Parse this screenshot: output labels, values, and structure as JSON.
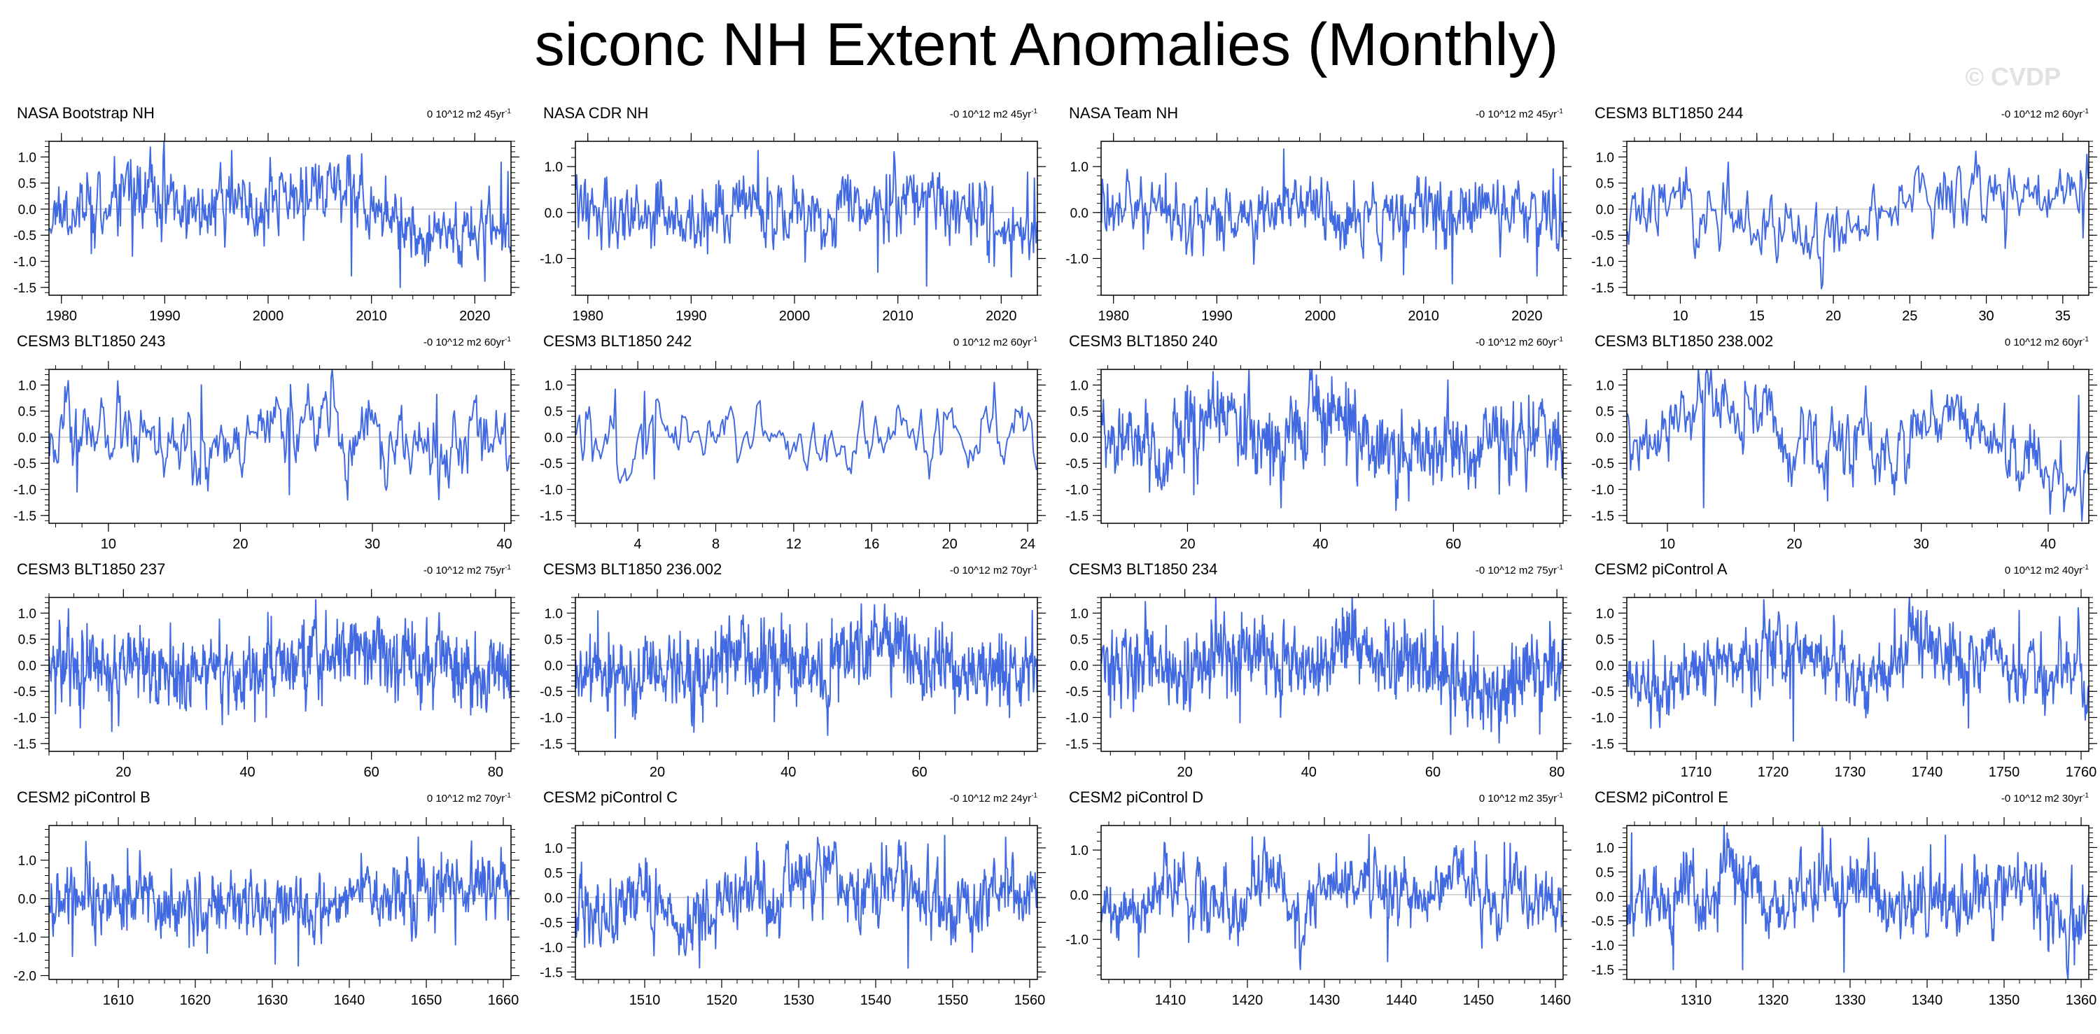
{
  "title": "siconc NH Extent Anomalies (Monthly)",
  "watermark": "© CVDP",
  "colors": {
    "line": "#4169e1",
    "zero_line": "#aaaaaa",
    "axis": "#000000"
  },
  "chart_data": [
    {
      "type": "line",
      "title": "NASA Bootstrap NH",
      "trend": "0 10^12 m2 45yr",
      "trend_sup": "-1",
      "xlim": [
        1978.8,
        2023.5
      ],
      "xticks": [
        1980,
        1990,
        2000,
        2010,
        2020
      ],
      "ylim": [
        -1.65,
        1.3
      ],
      "yticks": [
        -1.5,
        -1.0,
        -0.5,
        0.0,
        0.5,
        1.0
      ],
      "ylabels": [
        "-1.5",
        "-1.0",
        "-0.5",
        "0.0",
        "0.5",
        "1.0"
      ],
      "series": [
        {
          "name": "siconc NH extent anomaly",
          "seed": 11,
          "amp": 0.3,
          "sm": 0.35,
          "lf": 0.12,
          "n": 540,
          "spikes": [
            [
              0.395,
              1.12
            ],
            [
              0.655,
              -1.28
            ],
            [
              0.76,
              -1.5
            ],
            [
              0.945,
              -1.38
            ],
            [
              0.98,
              0.9
            ],
            [
              0.995,
              0.72
            ],
            [
              0.09,
              -0.85
            ],
            [
              0.18,
              -0.9
            ]
          ]
        }
      ]
    },
    {
      "type": "line",
      "title": "NASA CDR NH",
      "trend": "-0 10^12 m2 45yr",
      "trend_sup": "-1",
      "xlim": [
        1978.8,
        2023.5
      ],
      "xticks": [
        1980,
        1990,
        2000,
        2010,
        2020
      ],
      "ylim": [
        -1.8,
        1.55
      ],
      "yticks": [
        -1.0,
        0.0,
        1.0
      ],
      "ylabels": [
        "-1.0",
        "0.0",
        "1.0"
      ],
      "series": [
        {
          "name": "siconc NH extent anomaly",
          "seed": 12,
          "amp": 0.33,
          "sm": 0.35,
          "lf": 0.12,
          "n": 540,
          "spikes": [
            [
              0.395,
              1.35
            ],
            [
              0.655,
              -1.3
            ],
            [
              0.76,
              -1.6
            ],
            [
              0.945,
              -1.4
            ],
            [
              0.98,
              0.88
            ],
            [
              0.995,
              0.75
            ],
            [
              0.09,
              -0.78
            ]
          ]
        }
      ]
    },
    {
      "type": "line",
      "title": "NASA Team NH",
      "trend": "-0 10^12 m2 45yr",
      "trend_sup": "-1",
      "xlim": [
        1978.8,
        2023.5
      ],
      "xticks": [
        1980,
        1990,
        2000,
        2010,
        2020
      ],
      "ylim": [
        -1.8,
        1.55
      ],
      "yticks": [
        -1.0,
        0.0,
        1.0
      ],
      "ylabels": [
        "-1.0",
        "0.0",
        "1.0"
      ],
      "series": [
        {
          "name": "siconc NH extent anomaly",
          "seed": 13,
          "amp": 0.33,
          "sm": 0.35,
          "lf": 0.12,
          "n": 540,
          "spikes": [
            [
              0.395,
              1.38
            ],
            [
              0.655,
              -1.35
            ],
            [
              0.76,
              -1.55
            ],
            [
              0.945,
              -1.38
            ],
            [
              0.98,
              0.95
            ],
            [
              0.995,
              0.78
            ],
            [
              0.09,
              -0.8
            ]
          ]
        }
      ]
    },
    {
      "type": "line",
      "title": "CESM3 BLT1850 244",
      "trend": "-0 10^12 m2 60yr",
      "trend_sup": "-1",
      "xlim": [
        6.5,
        36.7
      ],
      "xticks": [
        10,
        15,
        20,
        25,
        30,
        35
      ],
      "ylim": [
        -1.65,
        1.3
      ],
      "yticks": [
        -1.5,
        -1.0,
        -0.5,
        0.0,
        0.5,
        1.0
      ],
      "ylabels": [
        "-1.5",
        "-1.0",
        "-0.5",
        "0.0",
        "0.5",
        "1.0"
      ],
      "series": [
        {
          "name": "siconc NH extent anomaly",
          "seed": 14,
          "amp": 0.28,
          "sm": 0.5,
          "lf": 0.2,
          "n": 362,
          "spikes": [
            [
              0.22,
              0.9
            ],
            [
              0.46,
              -0.8
            ],
            [
              0.82,
              -0.75
            ],
            [
              0.99,
              -0.55
            ]
          ]
        }
      ]
    },
    {
      "type": "line",
      "title": "CESM3 BLT1850 243",
      "trend": "-0 10^12 m2 60yr",
      "trend_sup": "-1",
      "xlim": [
        5.5,
        40.5
      ],
      "xticks": [
        10,
        20,
        30,
        40
      ],
      "ylim": [
        -1.65,
        1.3
      ],
      "yticks": [
        -1.5,
        -1.0,
        -0.5,
        0.0,
        0.5,
        1.0
      ],
      "ylabels": [
        "-1.5",
        "-1.0",
        "-0.5",
        "0.0",
        "0.5",
        "1.0"
      ],
      "series": [
        {
          "name": "siconc NH extent anomaly",
          "seed": 21,
          "amp": 0.3,
          "sm": 0.55,
          "lf": 0.22,
          "n": 420,
          "spikes": [
            [
              0.33,
              1.0
            ],
            [
              0.52,
              -1.1
            ],
            [
              0.06,
              -1.05
            ],
            [
              0.84,
              0.82
            ]
          ]
        }
      ]
    },
    {
      "type": "line",
      "title": "CESM3 BLT1850 242",
      "trend": "0 10^12 m2 60yr",
      "trend_sup": "-1",
      "xlim": [
        0.8,
        24.5
      ],
      "xticks": [
        4,
        8,
        12,
        16,
        20,
        24
      ],
      "ylim": [
        -1.65,
        1.3
      ],
      "yticks": [
        -1.5,
        -1.0,
        -0.5,
        0.0,
        0.5,
        1.0
      ],
      "ylabels": [
        "-1.5",
        "-1.0",
        "-0.5",
        "0.0",
        "0.5",
        "1.0"
      ],
      "series": [
        {
          "name": "siconc NH extent anomaly",
          "seed": 22,
          "amp": 0.22,
          "sm": 0.78,
          "lf": 0.08,
          "n": 284,
          "spikes": [
            [
              0.085,
              0.92
            ],
            [
              0.15,
              0.88
            ],
            [
              0.17,
              -0.8
            ]
          ]
        }
      ]
    },
    {
      "type": "line",
      "title": "CESM3 BLT1850 240",
      "trend": "-0 10^12 m2 60yr",
      "trend_sup": "-1",
      "xlim": [
        7.0,
        76.5
      ],
      "xticks": [
        20,
        40,
        60
      ],
      "ylim": [
        -1.65,
        1.3
      ],
      "yticks": [
        -1.5,
        -1.0,
        -0.5,
        0.0,
        0.5,
        1.0
      ],
      "ylabels": [
        "-1.5",
        "-1.0",
        "-0.5",
        "0.0",
        "0.5",
        "1.0"
      ],
      "series": [
        {
          "name": "siconc NH extent anomaly",
          "seed": 23,
          "amp": 0.33,
          "sm": 0.4,
          "lf": 0.2,
          "n": 720,
          "spikes": [
            [
              0.53,
              1.05
            ],
            [
              0.2,
              -1.1
            ]
          ]
        }
      ]
    },
    {
      "type": "line",
      "title": "CESM3 BLT1850 238.002",
      "trend": "0 10^12 m2 60yr",
      "trend_sup": "-1",
      "xlim": [
        6.8,
        43.2
      ],
      "xticks": [
        10,
        20,
        30,
        40
      ],
      "ylim": [
        -1.65,
        1.3
      ],
      "yticks": [
        -1.5,
        -1.0,
        -0.5,
        0.0,
        0.5,
        1.0
      ],
      "ylabels": [
        "-1.5",
        "-1.0",
        "-0.5",
        "0.0",
        "0.5",
        "1.0"
      ],
      "series": [
        {
          "name": "siconc NH extent anomaly",
          "seed": 24,
          "amp": 0.3,
          "sm": 0.5,
          "lf": 0.25,
          "n": 436,
          "spikes": [
            [
              0.165,
              -1.35
            ],
            [
              0.435,
              -1.22
            ],
            [
              0.3,
              1.0
            ],
            [
              0.98,
              0.8
            ]
          ]
        }
      ]
    },
    {
      "type": "line",
      "title": "CESM3 BLT1850 237",
      "trend": "-0 10^12 m2 75yr",
      "trend_sup": "-1",
      "xlim": [
        8.0,
        82.5
      ],
      "xticks": [
        20,
        40,
        60,
        80
      ],
      "ylim": [
        -1.65,
        1.3
      ],
      "yticks": [
        -1.5,
        -1.0,
        -0.5,
        0.0,
        0.5,
        1.0
      ],
      "ylabels": [
        "-1.5",
        "-1.0",
        "-0.5",
        "0.0",
        "0.5",
        "1.0"
      ],
      "series": [
        {
          "name": "siconc NH extent anomaly",
          "seed": 31,
          "amp": 0.35,
          "sm": 0.3,
          "lf": 0.1,
          "n": 820,
          "spikes": [
            [
              0.6,
              1.05
            ],
            [
              0.47,
              -1.0
            ]
          ]
        }
      ]
    },
    {
      "type": "line",
      "title": "CESM3 BLT1850 236.002",
      "trend": "-0 10^12 m2 70yr",
      "trend_sup": "-1",
      "xlim": [
        7.5,
        78.0
      ],
      "xticks": [
        20,
        40,
        60
      ],
      "ylim": [
        -1.65,
        1.3
      ],
      "yticks": [
        -1.5,
        -1.0,
        -0.5,
        0.0,
        0.5,
        1.0
      ],
      "ylabels": [
        "-1.5",
        "-1.0",
        "-0.5",
        "0.0",
        "0.5",
        "1.0"
      ],
      "series": [
        {
          "name": "siconc NH extent anomaly",
          "seed": 32,
          "amp": 0.35,
          "sm": 0.3,
          "lf": 0.1,
          "n": 770,
          "spikes": [
            [
              0.99,
              1.05
            ],
            [
              0.94,
              -1.0
            ],
            [
              0.43,
              -1.08
            ]
          ]
        }
      ]
    },
    {
      "type": "line",
      "title": "CESM3 BLT1850 234",
      "trend": "-0 10^12 m2 75yr",
      "trend_sup": "-1",
      "xlim": [
        6.5,
        81.0
      ],
      "xticks": [
        20,
        40,
        60,
        80
      ],
      "ylim": [
        -1.65,
        1.3
      ],
      "yticks": [
        -1.5,
        -1.0,
        -0.5,
        0.0,
        0.5,
        1.0
      ],
      "ylabels": [
        "-1.5",
        "-1.0",
        "-0.5",
        "0.0",
        "0.5",
        "1.0"
      ],
      "series": [
        {
          "name": "siconc NH extent anomaly",
          "seed": 33,
          "amp": 0.35,
          "sm": 0.35,
          "lf": 0.15,
          "n": 820,
          "spikes": [
            [
              0.72,
              1.25
            ],
            [
              0.95,
              -1.32
            ],
            [
              0.02,
              -1.0
            ],
            [
              0.3,
              -1.1
            ]
          ]
        }
      ]
    },
    {
      "type": "line",
      "title": "CESM2 piControl A",
      "trend": "0 10^12 m2 40yr",
      "trend_sup": "-1",
      "xlim": [
        1701.0,
        1761.0
      ],
      "xticks": [
        1710,
        1720,
        1730,
        1740,
        1750,
        1760
      ],
      "ylim": [
        -1.65,
        1.3
      ],
      "yticks": [
        -1.5,
        -1.0,
        -0.5,
        0.0,
        0.5,
        1.0
      ],
      "ylabels": [
        "-1.5",
        "-1.0",
        "-0.5",
        "0.0",
        "0.5",
        "1.0"
      ],
      "series": [
        {
          "name": "siconc NH extent anomaly",
          "seed": 34,
          "amp": 0.3,
          "sm": 0.45,
          "lf": 0.2,
          "n": 720,
          "spikes": [
            [
              0.36,
              -1.45
            ],
            [
              0.58,
              1.08
            ],
            [
              0.74,
              -1.2
            ],
            [
              0.85,
              1.05
            ]
          ]
        }
      ]
    },
    {
      "type": "line",
      "title": "CESM2 piControl B",
      "trend": "0 10^12 m2 70yr",
      "trend_sup": "-1",
      "xlim": [
        1601.0,
        1661.0
      ],
      "xticks": [
        1610,
        1620,
        1630,
        1640,
        1650,
        1660
      ],
      "ylim": [
        -2.1,
        1.9
      ],
      "yticks": [
        -2.0,
        -1.0,
        0.0,
        1.0
      ],
      "ylabels": [
        "-2.0",
        "-1.0",
        "0.0",
        "1.0"
      ],
      "series": [
        {
          "name": "siconc NH extent anomaly",
          "seed": 41,
          "amp": 0.38,
          "sm": 0.45,
          "lf": 0.15,
          "n": 720,
          "spikes": [
            [
              0.05,
              -1.5
            ],
            [
              0.49,
              -1.7
            ],
            [
              0.54,
              -1.75
            ],
            [
              0.8,
              1.6
            ],
            [
              0.85,
              1.2
            ],
            [
              0.88,
              -1.2
            ],
            [
              0.17,
              1.3
            ]
          ]
        }
      ]
    },
    {
      "type": "line",
      "title": "CESM2 piControl C",
      "trend": "-0 10^12 m2 24yr",
      "trend_sup": "-1",
      "xlim": [
        1501.0,
        1561.0
      ],
      "xticks": [
        1510,
        1520,
        1530,
        1540,
        1550,
        1560
      ],
      "ylim": [
        -1.65,
        1.45
      ],
      "yticks": [
        -1.5,
        -1.0,
        -0.5,
        0.0,
        0.5,
        1.0
      ],
      "ylabels": [
        "-1.5",
        "-1.0",
        "-0.5",
        "0.0",
        "0.5",
        "1.0"
      ],
      "series": [
        {
          "name": "siconc NH extent anomaly",
          "seed": 42,
          "amp": 0.33,
          "sm": 0.45,
          "lf": 0.25,
          "n": 720,
          "spikes": [
            [
              0.8,
              1.25
            ],
            [
              0.72,
              -1.42
            ],
            [
              0.02,
              -1.0
            ]
          ]
        }
      ]
    },
    {
      "type": "line",
      "title": "CESM2 piControl D",
      "trend": "0 10^12 m2 35yr",
      "trend_sup": "-1",
      "xlim": [
        1401.0,
        1461.0
      ],
      "xticks": [
        1410,
        1420,
        1430,
        1440,
        1450,
        1460
      ],
      "ylim": [
        -1.9,
        1.55
      ],
      "yticks": [
        -1.0,
        0.0,
        1.0
      ],
      "ylabels": [
        "-1.0",
        "0.0",
        "1.0"
      ],
      "series": [
        {
          "name": "siconc NH extent anomaly",
          "seed": 43,
          "amp": 0.3,
          "sm": 0.5,
          "lf": 0.3,
          "n": 720,
          "spikes": [
            [
              0.58,
              1.35
            ],
            [
              0.62,
              -1.5
            ],
            [
              0.81,
              1.2
            ],
            [
              0.08,
              -1.4
            ],
            [
              0.42,
              -1.2
            ]
          ]
        }
      ]
    },
    {
      "type": "line",
      "title": "CESM2 piControl E",
      "trend": "-0 10^12 m2 30yr",
      "trend_sup": "-1",
      "xlim": [
        1301.0,
        1361.0
      ],
      "xticks": [
        1310,
        1320,
        1330,
        1340,
        1350,
        1360
      ],
      "ylim": [
        -1.7,
        1.45
      ],
      "yticks": [
        -1.5,
        -1.0,
        -0.5,
        0.0,
        0.5,
        1.0
      ],
      "ylabels": [
        "-1.5",
        "-1.0",
        "-0.5",
        "0.0",
        "0.5",
        "1.0"
      ],
      "series": [
        {
          "name": "siconc NH extent anomaly",
          "seed": 44,
          "amp": 0.32,
          "sm": 0.45,
          "lf": 0.25,
          "n": 720,
          "spikes": [
            [
              0.01,
              1.3
            ],
            [
              0.1,
              -1.5
            ],
            [
              0.25,
              -1.5
            ],
            [
              0.47,
              -1.55
            ],
            [
              0.69,
              1.25
            ],
            [
              0.97,
              -1.4
            ]
          ]
        }
      ]
    }
  ]
}
